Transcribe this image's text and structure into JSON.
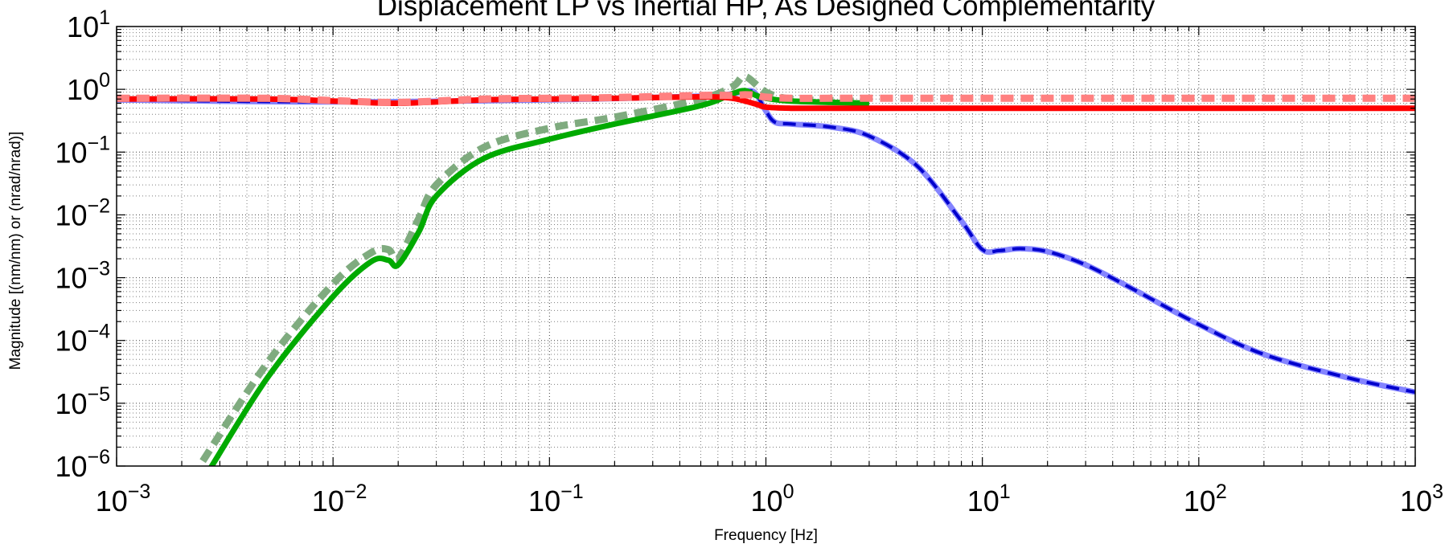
{
  "chart_data": {
    "type": "line",
    "title": "Displacement LP vs Inertial HP, As Designed Complementarity",
    "xlabel": "Frequency [Hz]",
    "ylabel": "Magnitude [(nm/nm) or (nrad/nrad)]",
    "x_scale": "log",
    "y_scale": "log",
    "xlim": [
      0.001,
      1000
    ],
    "ylim": [
      1e-06,
      10
    ],
    "grid": true,
    "legend": "none",
    "x_ticks": [
      {
        "base": "10",
        "exp": "−3"
      },
      {
        "base": "10",
        "exp": "−2"
      },
      {
        "base": "10",
        "exp": "−1"
      },
      {
        "base": "10",
        "exp": "0"
      },
      {
        "base": "10",
        "exp": "1"
      },
      {
        "base": "10",
        "exp": "2"
      },
      {
        "base": "10",
        "exp": "3"
      }
    ],
    "y_ticks": [
      {
        "base": "10",
        "exp": "1"
      },
      {
        "base": "10",
        "exp": "0"
      },
      {
        "base": "10",
        "exp": "−1"
      },
      {
        "base": "10",
        "exp": "−2"
      },
      {
        "base": "10",
        "exp": "−3"
      },
      {
        "base": "10",
        "exp": "−4"
      },
      {
        "base": "10",
        "exp": "−5"
      },
      {
        "base": "10",
        "exp": "−6"
      }
    ],
    "series": [
      {
        "color": "#8484ff",
        "style": "solid-thick",
        "x": [
          0.001,
          0.01,
          0.1,
          0.5,
          0.7,
          0.85,
          0.92,
          1.0,
          1.1,
          1.3,
          2,
          3,
          5,
          8,
          10,
          12,
          15,
          20,
          30,
          50,
          100,
          200,
          500,
          1000
        ],
        "y": [
          0.68,
          0.63,
          0.68,
          0.78,
          0.85,
          0.95,
          0.75,
          0.45,
          0.3,
          0.28,
          0.25,
          0.18,
          0.06,
          0.008,
          0.0028,
          0.0027,
          0.0029,
          0.0026,
          0.0016,
          0.00065,
          0.00018,
          6e-05,
          2.5e-05,
          1.5e-05
        ]
      },
      {
        "color": "#0000cc",
        "style": "dashed",
        "x": [
          0.001,
          0.01,
          0.1,
          0.5,
          0.7,
          0.85,
          0.92,
          1.0,
          1.1,
          1.3,
          2,
          3,
          5,
          8,
          10,
          12,
          15,
          20,
          30,
          50,
          100,
          200,
          500,
          1000
        ],
        "y": [
          0.68,
          0.63,
          0.68,
          0.78,
          0.85,
          0.95,
          0.75,
          0.45,
          0.3,
          0.28,
          0.25,
          0.18,
          0.06,
          0.008,
          0.0028,
          0.0027,
          0.0029,
          0.0026,
          0.0016,
          0.00065,
          0.00018,
          6e-05,
          2.5e-05,
          1.5e-05
        ]
      },
      {
        "color": "#7fab7f",
        "style": "dashed-thick",
        "x": [
          0.0025,
          0.005,
          0.01,
          0.015,
          0.018,
          0.02,
          0.025,
          0.03,
          0.05,
          0.1,
          0.2,
          0.5,
          0.7,
          0.8,
          1.0,
          1.3,
          2,
          3
        ],
        "y": [
          1.2e-06,
          4.5e-05,
          0.0008,
          0.0025,
          0.0028,
          0.002,
          0.009,
          0.03,
          0.12,
          0.24,
          0.36,
          0.7,
          1.1,
          1.6,
          0.9,
          0.7,
          0.66,
          0.64
        ]
      },
      {
        "color": "#00aa00",
        "style": "solid-thick",
        "x": [
          0.0027,
          0.005,
          0.01,
          0.015,
          0.018,
          0.02,
          0.025,
          0.03,
          0.05,
          0.1,
          0.2,
          0.5,
          0.7,
          0.8,
          0.9,
          1.0,
          1.3,
          2,
          3
        ],
        "y": [
          9e-07,
          2.6e-05,
          0.0005,
          0.0018,
          0.0019,
          0.0016,
          0.0055,
          0.02,
          0.08,
          0.16,
          0.28,
          0.55,
          0.85,
          0.95,
          0.8,
          0.72,
          0.65,
          0.62,
          0.6
        ]
      },
      {
        "color": "#ff0000",
        "style": "solid-thick",
        "x": [
          0.001,
          0.005,
          0.01,
          0.02,
          0.05,
          0.1,
          0.2,
          0.5,
          0.7,
          0.9,
          1.0,
          1.3,
          2,
          5,
          10,
          100,
          1000
        ],
        "y": [
          0.7,
          0.7,
          0.65,
          0.6,
          0.68,
          0.7,
          0.72,
          0.76,
          0.72,
          0.58,
          0.52,
          0.5,
          0.5,
          0.5,
          0.5,
          0.5,
          0.5
        ]
      },
      {
        "color": "#ff8080",
        "style": "dashed-thick",
        "x": [
          0.001,
          0.005,
          0.01,
          0.02,
          0.05,
          0.1,
          0.2,
          0.5,
          0.7,
          0.8,
          0.9,
          1.0,
          1.3,
          2,
          5,
          10,
          100,
          1000
        ],
        "y": [
          0.72,
          0.72,
          0.66,
          0.62,
          0.7,
          0.72,
          0.74,
          0.8,
          0.8,
          0.82,
          0.8,
          0.75,
          0.72,
          0.72,
          0.72,
          0.72,
          0.72,
          0.72
        ]
      }
    ]
  }
}
